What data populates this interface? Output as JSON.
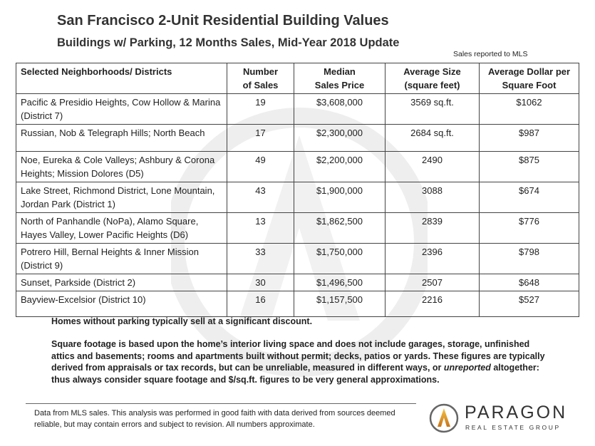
{
  "header": {
    "title": "San Francisco 2-Unit Residential Building Values",
    "subtitle": "Buildings w/ Parking, 12 Months Sales, Mid-Year 2018 Update",
    "source_note": "Sales reported to MLS"
  },
  "table": {
    "columns": [
      [
        "Selected Neighborhoods/ Districts"
      ],
      [
        "Number",
        "of Sales"
      ],
      [
        "Median",
        "Sales Price"
      ],
      [
        "Average Size",
        "(square feet)"
      ],
      [
        "Average Dollar per",
        "Square Foot"
      ]
    ],
    "rows": [
      [
        "Pacific & Presidio Heights, Cow Hollow & Marina (District 7)",
        "19",
        "$3,608,000",
        "3569 sq.ft.",
        "$1062"
      ],
      [
        "Russian, Nob & Telegraph Hills; North Beach",
        "17",
        "$2,300,000",
        "2684 sq.ft.",
        "$987"
      ],
      [
        "Noe, Eureka & Cole Valleys; Ashbury & Corona Heights; Mission Dolores (D5)",
        "49",
        "$2,200,000",
        "2490",
        "$875"
      ],
      [
        "Lake Street, Richmond District, Lone Mountain, Jordan Park (District 1)",
        "43",
        "$1,900,000",
        "3088",
        "$674"
      ],
      [
        "North of Panhandle (NoPa), Alamo Square, Hayes Valley, Lower Pacific Heights (D6)",
        "13",
        "$1,862,500",
        "2839",
        "$776"
      ],
      [
        "Potrero Hill, Bernal Heights & Inner Mission (District 9)",
        "33",
        "$1,750,000",
        "2396",
        "$798"
      ],
      [
        "Sunset, Parkside (District 2)",
        "30",
        "$1,496,500",
        "2507",
        "$648"
      ],
      [
        "Bayview-Excelsior (District 10)",
        "16",
        "$1,157,500",
        "2216",
        "$527"
      ]
    ]
  },
  "notes": {
    "parking": "Homes without parking typically sell at a significant discount.",
    "footage": [
      "Square footage is based upon the home’s interior living space and does not include garages, storage, unfinished attics and basements; rooms and apartments built without permit; decks, patios or yards.  These figures are typically derived from appraisals or tax records, but can be unreliable, measured in different ways, or ",
      "unreported",
      " altogether: thus always consider square footage and $/sq.ft. figures to be very general approximations."
    ]
  },
  "footer": {
    "disclaimer": "Data from MLS sales. This analysis was performed in good faith with data derived from sources deemed reliable, but may contain errors and subject to revision. All numbers approximate.",
    "brand": "PARAGON",
    "tagline": "REAL ESTATE GROUP"
  }
}
